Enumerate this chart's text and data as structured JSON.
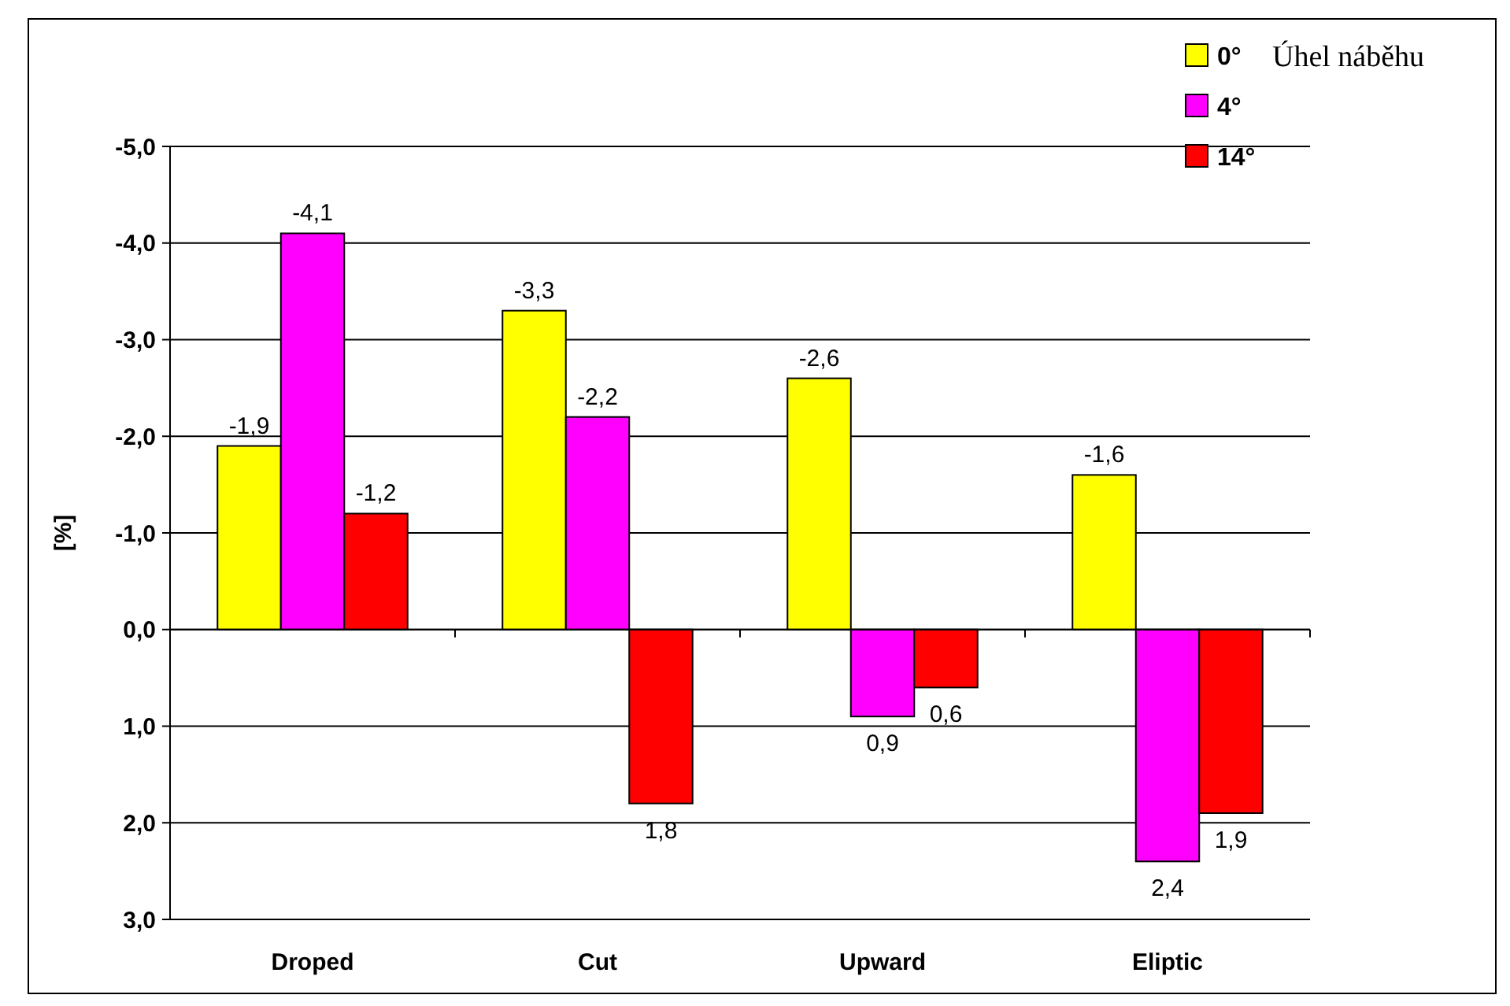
{
  "chart_data": {
    "type": "bar",
    "ylabel": "[%]",
    "legend_title": "Úhel náběhu",
    "categories": [
      "Droped",
      "Cut",
      "Upward",
      "Eliptic"
    ],
    "series": [
      {
        "name": "0°",
        "color": "#ffff00",
        "values": [
          -1.9,
          -3.3,
          -2.6,
          -1.6
        ],
        "value_labels": [
          "-1,9",
          "-3,3",
          "-2,6",
          "-1,6"
        ]
      },
      {
        "name": "4°",
        "color": "#ff00ff",
        "values": [
          -4.1,
          -2.2,
          0.9,
          2.4
        ],
        "value_labels": [
          "-4,1",
          "-2,2",
          "0,9",
          "2,4"
        ]
      },
      {
        "name": "14°",
        "color": "#ff0000",
        "values": [
          -1.2,
          1.8,
          0.6,
          1.9
        ],
        "value_labels": [
          "-1,2",
          "1,8",
          "0,6",
          "1,9"
        ]
      }
    ],
    "ylim": [
      3,
      -5
    ],
    "yticks": [
      {
        "value": -5,
        "label": "-5,0"
      },
      {
        "value": -4,
        "label": "-4,0"
      },
      {
        "value": -3,
        "label": "-3,0"
      },
      {
        "value": -2,
        "label": "-2,0"
      },
      {
        "value": -1,
        "label": "-1,0"
      },
      {
        "value": 0,
        "label": "0,0"
      },
      {
        "value": 1,
        "label": "1,0"
      },
      {
        "value": 2,
        "label": "2,0"
      },
      {
        "value": 3,
        "label": "3,0"
      }
    ],
    "grid": "y",
    "legend": "top right"
  }
}
